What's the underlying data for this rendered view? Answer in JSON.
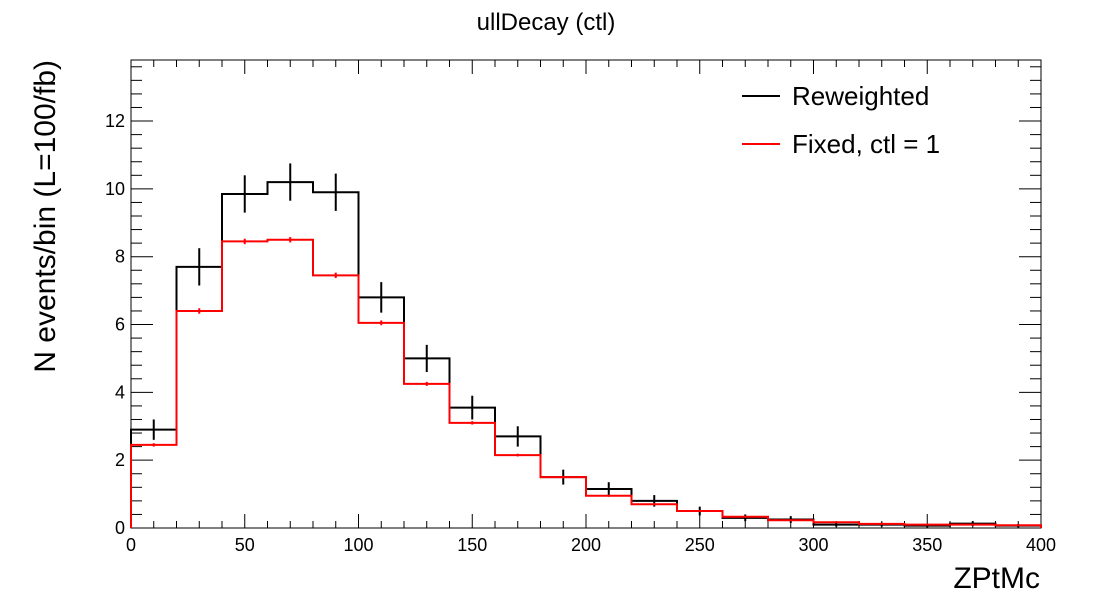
{
  "chart_data": {
    "type": "histogram",
    "title": "ullDecay (ctl)",
    "xlabel": "ZPtMc",
    "ylabel": "N events/bin (L=100/fb)",
    "xlim": [
      0,
      400
    ],
    "ylim": [
      0,
      13.8
    ],
    "x_ticks": [
      "0",
      "50",
      "100",
      "150",
      "200",
      "250",
      "300",
      "350",
      "400"
    ],
    "y_ticks": [
      "0",
      "2",
      "4",
      "6",
      "8",
      "10",
      "12"
    ],
    "bin_edges": [
      0,
      20,
      40,
      60,
      80,
      100,
      120,
      140,
      160,
      180,
      200,
      220,
      240,
      260,
      280,
      300,
      320,
      340,
      360,
      380,
      400
    ],
    "legend_position": "top-right",
    "series": [
      {
        "name": "Reweighted",
        "color": "#000000",
        "values": [
          2.9,
          7.7,
          9.85,
          10.2,
          9.9,
          6.8,
          5.0,
          3.55,
          2.7,
          1.5,
          1.15,
          0.8,
          0.5,
          0.3,
          0.25,
          0.1,
          0.1,
          0.07,
          0.13,
          0.07
        ],
        "errors": [
          0.3,
          0.55,
          0.55,
          0.55,
          0.55,
          0.45,
          0.4,
          0.35,
          0.3,
          0.22,
          0.2,
          0.17,
          0.13,
          0.1,
          0.1,
          0.06,
          0.06,
          0.05,
          0.07,
          0.05
        ]
      },
      {
        "name": "Fixed, ctl = 1",
        "color": "#ff0000",
        "values": [
          2.45,
          6.4,
          8.45,
          8.5,
          7.45,
          6.05,
          4.25,
          3.1,
          2.15,
          1.5,
          0.95,
          0.7,
          0.5,
          0.33,
          0.23,
          0.17,
          0.12,
          0.1,
          0.1,
          0.08
        ],
        "errors": [
          0.05,
          0.08,
          0.08,
          0.08,
          0.08,
          0.07,
          0.06,
          0.05,
          0.04,
          0.04,
          0.03,
          0.03,
          0.02,
          0.02,
          0.02,
          0.01,
          0.01,
          0.01,
          0.01,
          0.01
        ]
      }
    ]
  }
}
